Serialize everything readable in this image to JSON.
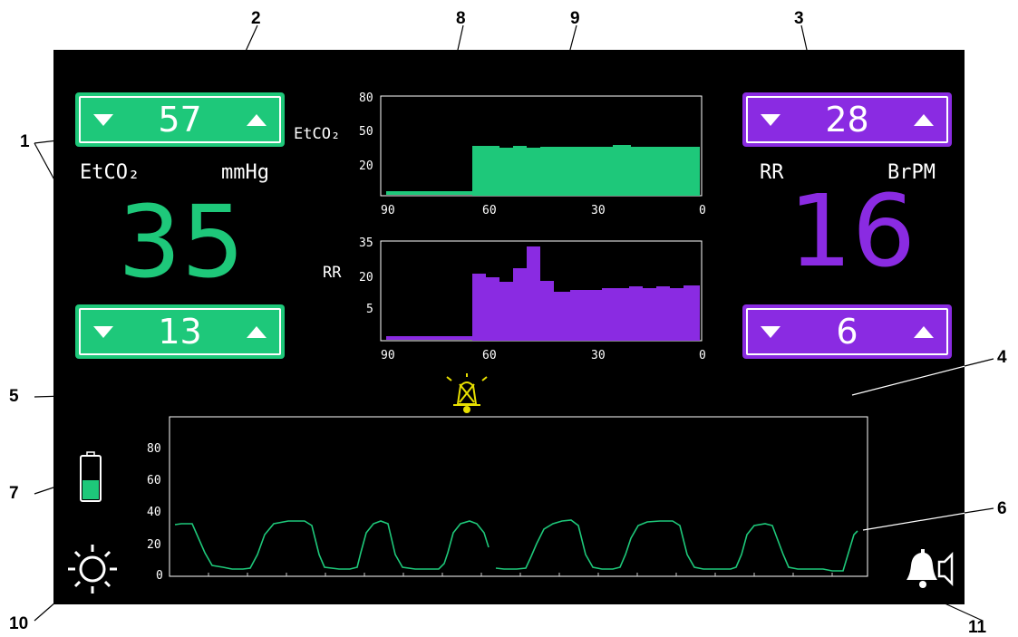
{
  "etco2": {
    "label": "EtCO₂",
    "unit": "mmHg",
    "value": "35",
    "upper_alarm": "57",
    "lower_alarm": "13",
    "color": "#1ec87a"
  },
  "rr": {
    "label": "RR",
    "unit": "BrPM",
    "value": "16",
    "upper_alarm": "28",
    "lower_alarm": "6",
    "color": "#8a2be2"
  },
  "trend_etco2": {
    "axis_label": "EtCO₂",
    "y_ticks": [
      "80",
      "50",
      "20"
    ],
    "x_ticks": [
      "90",
      "60",
      "30",
      "0"
    ]
  },
  "trend_rr": {
    "axis_label": "RR",
    "y_ticks": [
      "35",
      "20",
      "5"
    ],
    "x_ticks": [
      "90",
      "60",
      "30",
      "0"
    ]
  },
  "waveform": {
    "y_ticks": [
      "80",
      "60",
      "40",
      "20",
      "0"
    ],
    "color": "#1ec87a"
  },
  "icons": {
    "alarm_silenced": "alarm-silenced-icon",
    "battery": "battery-icon",
    "brightness": "brightness-icon",
    "alarm_volume": "alarm-volume-icon"
  },
  "battery_level": 0.45,
  "callouts": [
    "1",
    "2",
    "3",
    "4",
    "5",
    "6",
    "7",
    "8",
    "9",
    "10",
    "11"
  ]
}
